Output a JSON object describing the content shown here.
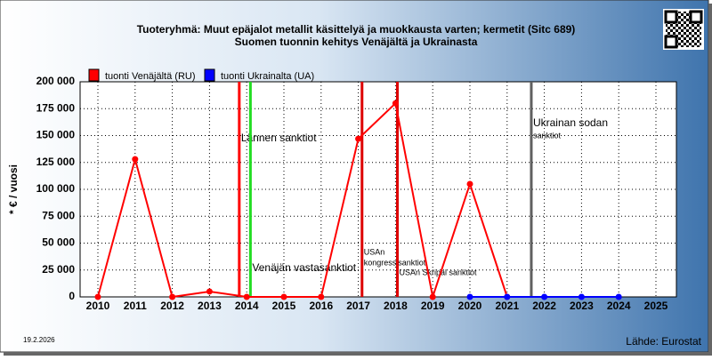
{
  "chart_data": {
    "type": "line",
    "title": "Tuoteryhmä: Muut epäjalot metallit käsittelyä ja muokkausta varten; kermetit (Sitc 689)",
    "subtitle": "Suomen tuonnin kehitys  Venäjältä ja Ukrainasta",
    "y_label": "* € / vuosi",
    "categories": [
      "2010",
      "2011",
      "2012",
      "2013",
      "2014",
      "2015",
      "2016",
      "2017",
      "2018",
      "2019",
      "2020",
      "2021",
      "2022",
      "2023",
      "2024",
      "2025"
    ],
    "series": [
      {
        "name": "tuonti Venäjältä (RU)",
        "color": "#ff0000",
        "values": [
          0,
          128000,
          0,
          5000,
          0,
          0,
          0,
          147000,
          180000,
          0,
          105000,
          0,
          null,
          null,
          null,
          null
        ]
      },
      {
        "name": "tuonti Ukrainalta (UA)",
        "color": "#0000ff",
        "values": [
          null,
          null,
          null,
          null,
          null,
          null,
          null,
          null,
          null,
          null,
          0,
          0,
          0,
          0,
          0,
          null
        ]
      }
    ],
    "ylim": [
      0,
      200000
    ],
    "yticks": [
      0,
      {
        "value": 25000,
        "label": "25 000"
      },
      {
        "value": 50000,
        "label": "50 000"
      },
      {
        "value": 75000,
        "label": "75 000"
      },
      {
        "value": 100000,
        "label": "100 000"
      },
      {
        "value": 125000,
        "label": "125 000"
      },
      {
        "value": 150000,
        "label": "150 000"
      },
      {
        "value": 175000,
        "label": "175 000"
      },
      {
        "value": 200000,
        "label": "200 000"
      }
    ],
    "grid": true,
    "events": [
      {
        "x": 2013.8,
        "color": "#ff0000",
        "label": [
          "Lännen sanktiot"
        ]
      },
      {
        "x": 2014.1,
        "color": "#22dd22",
        "label": [
          "Venäjän vastasanktiot"
        ]
      },
      {
        "x": 2017.1,
        "color": "#dd0000",
        "label": [
          "USAn",
          "kongressisanktiot"
        ]
      },
      {
        "x": 2018.05,
        "color": "#dd0000",
        "label": [
          "USAn Skripal sanktiot"
        ]
      },
      {
        "x": 2021.65,
        "color": "#606060",
        "label": [
          "Ukrainan sodan",
          "sanktiot"
        ]
      }
    ],
    "date": "19.2.2026",
    "source": "Lähde: Eurostat"
  }
}
